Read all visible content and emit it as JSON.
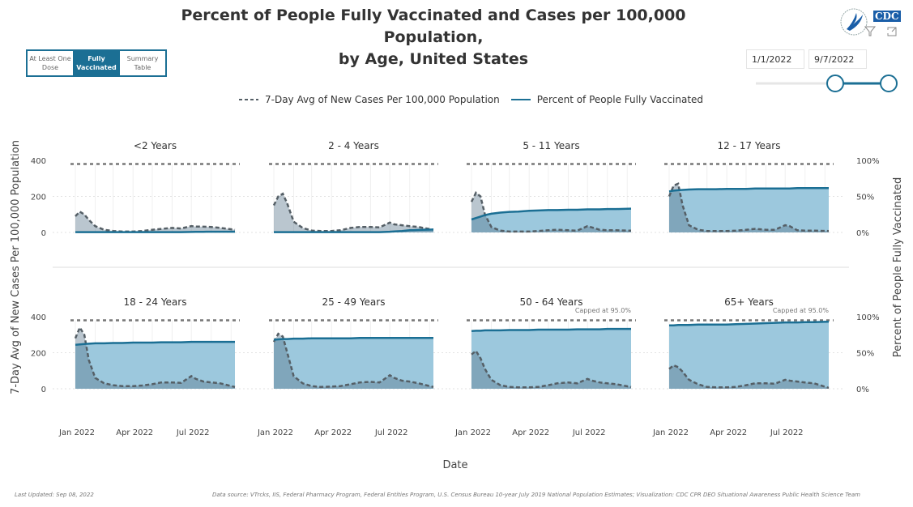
{
  "header": {
    "title_line1": "Percent of People Fully Vaccinated and Cases per 100,000 Population,",
    "title_line2": "by Age, United States"
  },
  "tabs": [
    {
      "label": "At Least One Dose",
      "active": false
    },
    {
      "label": "Fully Vaccinated",
      "active": true
    },
    {
      "label": "Summary Table",
      "active": false
    }
  ],
  "logo": {
    "text": "CDC"
  },
  "icons": [
    "hhs-eagle-logo",
    "cdc-logo",
    "filter-icon",
    "expand-icon"
  ],
  "date_range": {
    "start": "1/1/2022",
    "end": "9/7/2022"
  },
  "legend": {
    "cases": "7-Day Avg of New Cases Per 100,000 Population",
    "vaccinated": "Percent of People Fully Vaccinated"
  },
  "footer": {
    "updated": "Last Updated: Sep 08, 2022",
    "source": "Data source: VTrcks, IIS, Federal Pharmacy Program, Federal Entities Program, U.S. Census Bureau 10-year July 2019 National Population Estimates; Visualization: CDC CPR DEO Situational Awareness Public Health Science Team"
  },
  "colors": {
    "vaccinated_line": "#1b6f94",
    "vaccinated_fill": "#9cc8dd",
    "cases_line": "#555f66",
    "cases_fill": "#5a788c",
    "cap_line": "#777777"
  },
  "chart_data": {
    "type": "line",
    "xlabel": "Date",
    "ylabel_left": "7-Day Avg of New Cases Per 100,000 Population",
    "ylabel_right": "Percent of People Fully Vaccinated",
    "ylim_left": [
      0,
      400
    ],
    "ylim_right": [
      0,
      100
    ],
    "left_ticks": [
      "0",
      "200",
      "400"
    ],
    "right_ticks": [
      "0%",
      "50%",
      "100%"
    ],
    "x_ticks": [
      "Jan 2022",
      "Apr 2022",
      "Jul 2022"
    ],
    "xlim": [
      "2022-01-01",
      "2022-09-07"
    ],
    "cap_percent": 95,
    "dates": [
      "2022-01-01",
      "2022-01-08",
      "2022-01-15",
      "2022-01-22",
      "2022-02-01",
      "2022-02-15",
      "2022-03-01",
      "2022-03-15",
      "2022-04-01",
      "2022-04-15",
      "2022-05-01",
      "2022-05-15",
      "2022-06-01",
      "2022-06-15",
      "2022-07-01",
      "2022-07-08",
      "2022-07-20",
      "2022-08-01",
      "2022-08-15",
      "2022-09-07"
    ],
    "panels": [
      {
        "title": "<2 Years",
        "note": "",
        "cases": [
          90,
          115,
          100,
          70,
          35,
          15,
          8,
          5,
          5,
          8,
          15,
          20,
          25,
          22,
          35,
          33,
          32,
          30,
          25,
          15
        ],
        "vaccinated": [
          0.5,
          0.5,
          0.5,
          0.5,
          0.5,
          0.5,
          0.5,
          0.5,
          0.5,
          0.5,
          0.5,
          0.5,
          0.5,
          0.5,
          0.7,
          0.8,
          0.9,
          1,
          1,
          1
        ]
      },
      {
        "title": "2 - 4 Years",
        "note": "",
        "cases": [
          150,
          200,
          215,
          160,
          60,
          25,
          10,
          8,
          8,
          12,
          25,
          30,
          30,
          28,
          55,
          45,
          40,
          35,
          30,
          15
        ],
        "vaccinated": [
          0.5,
          0.5,
          0.5,
          0.5,
          0.5,
          0.5,
          0.5,
          0.5,
          0.5,
          0.5,
          0.5,
          0.5,
          0.5,
          0.5,
          1,
          1.5,
          2,
          3,
          3.5,
          4
        ]
      },
      {
        "title": "5 - 11 Years",
        "note": "",
        "cases": [
          170,
          220,
          200,
          100,
          30,
          10,
          5,
          5,
          5,
          8,
          12,
          15,
          12,
          10,
          35,
          28,
          15,
          12,
          12,
          10
        ],
        "vaccinated": [
          18,
          20,
          22,
          24,
          26,
          27.5,
          28.5,
          29,
          30,
          30.5,
          31,
          31,
          31.5,
          31.5,
          32,
          32,
          32,
          32.5,
          32.5,
          33
        ]
      },
      {
        "title": "12 - 17 Years",
        "note": "",
        "cases": [
          200,
          260,
          270,
          150,
          40,
          15,
          8,
          8,
          8,
          10,
          15,
          20,
          15,
          15,
          40,
          35,
          12,
          10,
          10,
          8
        ],
        "vaccinated": [
          57,
          58,
          58.5,
          59,
          59.5,
          60,
          60,
          60,
          60.5,
          60.5,
          60.5,
          61,
          61,
          61,
          61,
          61,
          61.5,
          61.5,
          61.5,
          61.5
        ]
      },
      {
        "title": "18 - 24 Years",
        "note": "",
        "cases": [
          280,
          340,
          300,
          160,
          60,
          30,
          20,
          15,
          15,
          18,
          25,
          35,
          35,
          33,
          70,
          55,
          40,
          35,
          30,
          10
        ],
        "vaccinated": [
          61,
          61.5,
          62,
          62.5,
          63,
          63,
          63.5,
          63.5,
          64,
          64,
          64,
          64.5,
          64.5,
          64.5,
          65,
          65,
          65,
          65,
          65,
          65
        ]
      },
      {
        "title": "25 - 49 Years",
        "note": "",
        "cases": [
          260,
          305,
          290,
          200,
          70,
          30,
          15,
          10,
          12,
          15,
          25,
          35,
          38,
          35,
          75,
          60,
          45,
          40,
          30,
          10
        ],
        "vaccinated": [
          68,
          68.5,
          69,
          69,
          69.5,
          69.5,
          70,
          70,
          70,
          70,
          70,
          70.5,
          70.5,
          70.5,
          70.5,
          70.5,
          70.5,
          70.5,
          70.5,
          70.5
        ]
      },
      {
        "title": "50 - 64 Years",
        "note": "Capped at 95.0%",
        "cases": [
          190,
          210,
          170,
          110,
          50,
          20,
          10,
          8,
          8,
          10,
          20,
          30,
          35,
          30,
          55,
          45,
          35,
          30,
          25,
          10
        ],
        "vaccinated": [
          80,
          80.5,
          80.5,
          81,
          81,
          81,
          81.5,
          81.5,
          81.5,
          82,
          82,
          82,
          82,
          82.5,
          82.5,
          82.5,
          82.5,
          83,
          83,
          83
        ]
      },
      {
        "title": "65+ Years",
        "note": "Capped at 95.0%",
        "cases": [
          110,
          130,
          120,
          95,
          50,
          25,
          10,
          8,
          8,
          10,
          20,
          30,
          30,
          28,
          50,
          45,
          40,
          35,
          30,
          5
        ],
        "vaccinated": [
          88,
          88,
          88.5,
          88.5,
          88.5,
          89,
          89,
          89,
          89,
          89.5,
          90,
          90.5,
          91,
          91.5,
          92,
          92,
          92,
          92.5,
          92.5,
          93
        ]
      }
    ]
  }
}
